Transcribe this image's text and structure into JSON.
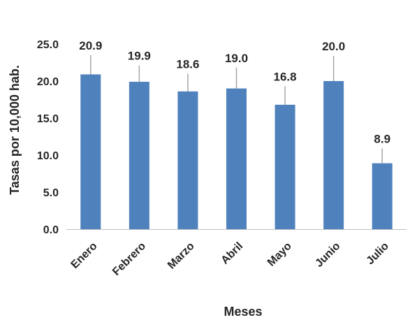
{
  "chart_data": {
    "type": "bar",
    "categories": [
      "Enero",
      "Febrero",
      "Marzo",
      "Abril",
      "Mayo",
      "Junio",
      "Julio"
    ],
    "values": [
      20.9,
      19.9,
      18.6,
      19.0,
      16.8,
      20.0,
      8.9
    ],
    "data_labels": [
      "20.9",
      "19.9",
      "18.6",
      "19.0",
      "16.8",
      "20.0",
      "8.9"
    ],
    "error_upper": [
      23.5,
      22.1,
      21.0,
      21.8,
      19.3,
      23.4,
      10.9
    ],
    "yticks": [
      "0.0",
      "5.0",
      "10.0",
      "15.0",
      "20.0",
      "25.0"
    ],
    "ylim": [
      0,
      25
    ],
    "xlabel": "Meses",
    "ylabel": "Tasas por 10,000 hab.",
    "bar_color": "#4f81bd",
    "error_color": "#a6a6a6",
    "axis_color": "#bfbfbf",
    "grid": false,
    "legend": "none"
  }
}
